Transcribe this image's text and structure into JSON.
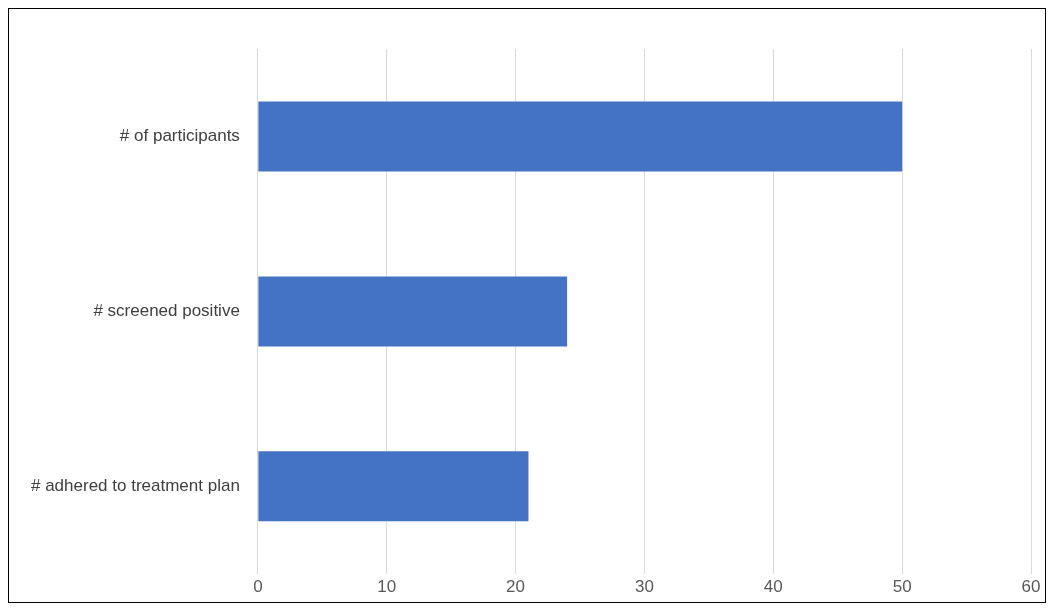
{
  "chart_data": {
    "type": "bar",
    "orientation": "horizontal",
    "categories": [
      "# of participants",
      "# screened positive",
      "# adhered to treatment plan"
    ],
    "values": [
      50,
      24,
      21
    ],
    "color": "#4472c4",
    "xlim": [
      0,
      60
    ],
    "xticks": [
      0,
      10,
      20,
      30,
      40,
      50,
      60
    ],
    "grid": "x"
  }
}
